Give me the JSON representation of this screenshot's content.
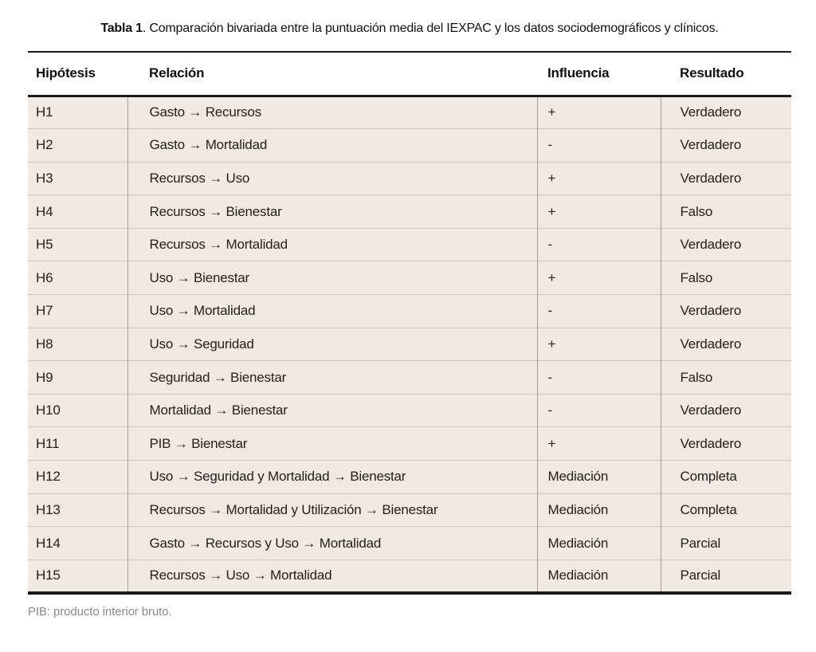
{
  "title": {
    "label_bold": "Tabla 1",
    "label_rest": ". Comparación bivariada entre la puntuación media del IEXPAC y los datos sociodemográficos y clínicos."
  },
  "table": {
    "columns": [
      "Hipótesis",
      "Relación",
      "Influencia",
      "Resultado"
    ],
    "rows": [
      {
        "hypothesis": "H1",
        "relation": "Gasto → Recursos",
        "influence": "+",
        "result": "Verdadero"
      },
      {
        "hypothesis": "H2",
        "relation": "Gasto → Mortalidad",
        "influence": "-",
        "result": "Verdadero"
      },
      {
        "hypothesis": "H3",
        "relation": "Recursos → Uso",
        "influence": "+",
        "result": "Verdadero"
      },
      {
        "hypothesis": "H4",
        "relation": "Recursos → Bienestar",
        "influence": "+",
        "result": "Falso"
      },
      {
        "hypothesis": "H5",
        "relation": "Recursos → Mortalidad",
        "influence": "-",
        "result": "Verdadero"
      },
      {
        "hypothesis": "H6",
        "relation": "Uso → Bienestar",
        "influence": "+",
        "result": "Falso"
      },
      {
        "hypothesis": "H7",
        "relation": "Uso → Mortalidad",
        "influence": "-",
        "result": "Verdadero"
      },
      {
        "hypothesis": "H8",
        "relation": "Uso → Seguridad",
        "influence": "+",
        "result": "Verdadero"
      },
      {
        "hypothesis": "H9",
        "relation": "Seguridad → Bienestar",
        "influence": "-",
        "result": "Falso"
      },
      {
        "hypothesis": "H10",
        "relation": "Mortalidad → Bienestar",
        "influence": "-",
        "result": "Verdadero"
      },
      {
        "hypothesis": "H11",
        "relation": "PIB → Bienestar",
        "influence": "+",
        "result": "Verdadero"
      },
      {
        "hypothesis": "H12",
        "relation": "Uso → Seguridad y Mortalidad → Bienestar",
        "influence": "Mediación",
        "result": "Completa"
      },
      {
        "hypothesis": "H13",
        "relation": "Recursos → Mortalidad y Utilización → Bienestar",
        "influence": "Mediación",
        "result": "Completa"
      },
      {
        "hypothesis": "H14",
        "relation": "Gasto → Recursos y Uso → Mortalidad",
        "influence": "Mediación",
        "result": "Parcial"
      },
      {
        "hypothesis": "H15",
        "relation": "Recursos → Uso → Mortalidad",
        "influence": "Mediación",
        "result": "Parcial"
      }
    ]
  },
  "footnote": "PIB: producto interior bruto.",
  "colors": {
    "row_background": "#f1e9e2",
    "rule_dark": "#1b1918",
    "divider_vertical": "#a39d97",
    "divider_horizontal": "#cbc5bf",
    "text_primary": "#24211d",
    "footnote_text": "#8d8b89"
  }
}
